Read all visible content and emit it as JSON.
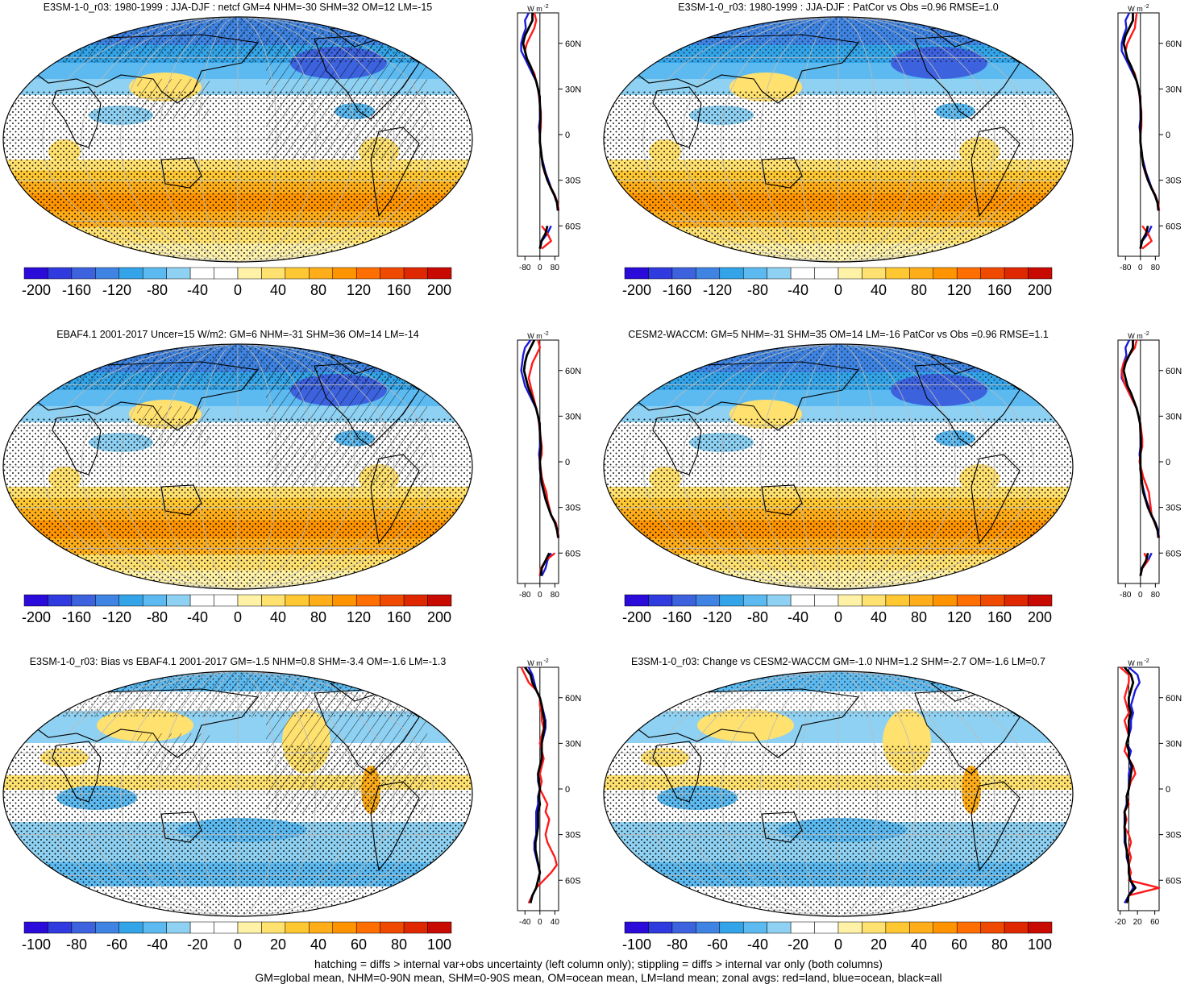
{
  "colorbar_colors": [
    "#2a0bd9",
    "#2f3bde",
    "#3d62de",
    "#3f84e2",
    "#33a4e8",
    "#5cbaf0",
    "#8fd1f2",
    "#ffffff",
    "#ffffff",
    "#fff2a6",
    "#ffe170",
    "#ffc833",
    "#ffae1a",
    "#ff9400",
    "#ff6e00",
    "#f04a00",
    "#e02800",
    "#c80a00"
  ],
  "zonal_line_colors": {
    "land": "#ff1a1a",
    "ocean": "#1a1adc",
    "all": "#000000"
  },
  "map_palette": {
    "land_outline": "#000000",
    "grid": "#bbbbbb"
  },
  "zonal_lat_labels": [
    "60N",
    "30N",
    "0",
    "30S",
    "60S"
  ],
  "panels": [
    {
      "id": "p1",
      "title": "E3SM-1-0_r03: 1980-1999 : JJA-DJF : netcf GM=4 NHM=-30 SHM=32 OM=12 LM=-15",
      "cbar_ticks": [
        "-200",
        "-160",
        "-120",
        "-80",
        "-40",
        "0",
        "40",
        "80",
        "120",
        "160",
        "200"
      ],
      "zonal_unit": "W m",
      "zonal_unit_exp": "-2",
      "zonal_x_ticks": [
        "-80",
        "0",
        "80"
      ],
      "zonal_xrange": [
        -120,
        100
      ],
      "hatch": true,
      "zonal": {
        "lat": [
          80,
          75,
          70,
          65,
          60,
          55,
          50,
          45,
          40,
          35,
          30,
          25,
          20,
          15,
          10,
          5,
          0,
          -5,
          -10,
          -15,
          -20,
          -25,
          -30,
          -35,
          -40,
          -45,
          -50,
          -55,
          -60,
          -65,
          -70,
          -75
        ],
        "land": [
          -30,
          -20,
          -30,
          -50,
          -70,
          -80,
          -70,
          -50,
          -30,
          -20,
          -10,
          -5,
          0,
          5,
          5,
          5,
          0,
          0,
          5,
          10,
          15,
          25,
          40,
          60,
          80,
          95,
          100,
          null,
          10,
          40,
          60,
          10
        ],
        "ocean": [
          -60,
          -80,
          -75,
          -90,
          -100,
          -100,
          -80,
          -60,
          -40,
          -20,
          -10,
          0,
          0,
          0,
          0,
          -5,
          0,
          0,
          5,
          10,
          20,
          30,
          45,
          60,
          80,
          95,
          100,
          null,
          60,
          40,
          10,
          0
        ],
        "all": [
          -40,
          -40,
          -60,
          -80,
          -90,
          -80,
          -70,
          -50,
          -35,
          -20,
          -10,
          -2,
          0,
          2,
          3,
          0,
          0,
          0,
          5,
          10,
          15,
          28,
          40,
          58,
          78,
          92,
          96,
          null,
          40,
          30,
          8,
          0
        ]
      }
    },
    {
      "id": "p2",
      "title": "E3SM-1-0_r03: 1980-1999 : JJA-DJF : PatCor vs Obs =0.96 RMSE=1.0",
      "cbar_ticks": [
        "-200",
        "-160",
        "-120",
        "-80",
        "-40",
        "0",
        "40",
        "80",
        "120",
        "160",
        "200"
      ],
      "zonal_unit": "W m",
      "zonal_unit_exp": "-2",
      "zonal_x_ticks": [
        "-80",
        "0",
        "80"
      ],
      "zonal_xrange": [
        -120,
        100
      ],
      "hatch": false,
      "zonal": {
        "lat": [
          80,
          75,
          70,
          65,
          60,
          55,
          50,
          45,
          40,
          35,
          30,
          25,
          20,
          15,
          10,
          5,
          0,
          -5,
          -10,
          -15,
          -20,
          -25,
          -30,
          -35,
          -40,
          -45,
          -50,
          -55,
          -60,
          -65,
          -70,
          -75
        ],
        "land": [
          -20,
          -25,
          -30,
          -50,
          -70,
          -80,
          -70,
          -50,
          -30,
          -20,
          -10,
          -5,
          0,
          5,
          5,
          5,
          0,
          0,
          5,
          10,
          15,
          25,
          40,
          60,
          80,
          95,
          100,
          null,
          10,
          40,
          60,
          10
        ],
        "ocean": [
          -60,
          -80,
          -75,
          -90,
          -100,
          -100,
          -80,
          -60,
          -40,
          -20,
          -10,
          0,
          0,
          0,
          0,
          -5,
          0,
          0,
          5,
          10,
          20,
          30,
          45,
          60,
          80,
          95,
          100,
          null,
          60,
          40,
          10,
          0
        ],
        "all": [
          -40,
          -40,
          -60,
          -80,
          -90,
          -80,
          -70,
          -50,
          -35,
          -20,
          -10,
          -2,
          0,
          2,
          3,
          0,
          0,
          0,
          5,
          10,
          15,
          28,
          40,
          58,
          78,
          92,
          96,
          null,
          40,
          30,
          8,
          0
        ]
      }
    },
    {
      "id": "p3",
      "title": "EBAF4.1 2001-2017 Uncer=15 W/m2: GM=6 NHM=-31 SHM=36 OM=14 LM=-14",
      "cbar_ticks": [
        "-200",
        "-160",
        "-120",
        "-80",
        "-40",
        "0",
        "40",
        "80",
        "120",
        "160",
        "200"
      ],
      "zonal_unit": "W m",
      "zonal_unit_exp": "-2",
      "zonal_x_ticks": [
        "-80",
        "0",
        "80"
      ],
      "zonal_xrange": [
        -120,
        100
      ],
      "hatch": true,
      "zonal": {
        "lat": [
          80,
          75,
          70,
          65,
          60,
          55,
          50,
          45,
          40,
          35,
          30,
          25,
          20,
          15,
          10,
          5,
          0,
          -5,
          -10,
          -15,
          -20,
          -25,
          -30,
          -35,
          -40,
          -45,
          -50,
          -55,
          -60,
          -65,
          -70,
          -75
        ],
        "land": [
          -10,
          0,
          -20,
          -40,
          -50,
          -60,
          -50,
          -40,
          -30,
          -20,
          -10,
          -5,
          0,
          5,
          10,
          10,
          0,
          5,
          10,
          20,
          35,
          40,
          50,
          60,
          85,
          95,
          100,
          null,
          80,
          30,
          5,
          0
        ],
        "ocean": [
          -50,
          -80,
          -90,
          -95,
          -100,
          -90,
          -80,
          -60,
          -40,
          -20,
          -10,
          0,
          0,
          0,
          0,
          -5,
          0,
          0,
          5,
          10,
          20,
          30,
          45,
          60,
          80,
          95,
          100,
          null,
          60,
          40,
          30,
          10
        ],
        "all": [
          -30,
          -50,
          -70,
          -80,
          -85,
          -75,
          -65,
          -50,
          -35,
          -20,
          -10,
          -2,
          0,
          2,
          5,
          2,
          0,
          2,
          6,
          12,
          22,
          32,
          45,
          60,
          80,
          92,
          98,
          null,
          50,
          30,
          10,
          5
        ]
      }
    },
    {
      "id": "p4",
      "title": "CESM2-WACCM: GM=5 NHM=-31 SHM=35 OM=14 LM=-16 PatCor vs Obs =0.96 RMSE=1.1",
      "cbar_ticks": [
        "-200",
        "-160",
        "-120",
        "-80",
        "-40",
        "0",
        "40",
        "80",
        "120",
        "160",
        "200"
      ],
      "zonal_unit": "W m",
      "zonal_unit_exp": "-2",
      "zonal_x_ticks": [
        "-80",
        "0",
        "80"
      ],
      "zonal_xrange": [
        -120,
        100
      ],
      "hatch": false,
      "zonal": {
        "lat": [
          80,
          75,
          70,
          65,
          60,
          55,
          50,
          45,
          40,
          35,
          30,
          25,
          20,
          15,
          10,
          5,
          0,
          -5,
          -10,
          -15,
          -20,
          -25,
          -30,
          -35,
          -40,
          -45,
          -50,
          -55,
          -60,
          -65,
          -70,
          -75
        ],
        "land": [
          -20,
          -30,
          -60,
          -90,
          -100,
          -95,
          -80,
          -60,
          -40,
          -20,
          -10,
          0,
          5,
          10,
          10,
          0,
          -5,
          5,
          15,
          30,
          45,
          50,
          55,
          60,
          75,
          90,
          100,
          null,
          20,
          40,
          10,
          0
        ],
        "ocean": [
          -60,
          -80,
          -75,
          -90,
          -100,
          -100,
          -80,
          -60,
          -40,
          -20,
          -10,
          0,
          0,
          0,
          0,
          -5,
          0,
          0,
          5,
          10,
          20,
          30,
          45,
          60,
          80,
          95,
          100,
          null,
          60,
          40,
          10,
          0
        ],
        "all": [
          -40,
          -40,
          -60,
          -80,
          -90,
          -80,
          -70,
          -50,
          -35,
          -20,
          -10,
          -2,
          0,
          2,
          3,
          0,
          0,
          0,
          5,
          10,
          15,
          28,
          40,
          58,
          78,
          92,
          96,
          null,
          40,
          30,
          8,
          0
        ]
      }
    },
    {
      "id": "p5",
      "title": "E3SM-1-0_r03: Bias vs EBAF4.1 2001-2017 GM=-1.5 NHM=0.8 SHM=-3.4 OM=-1.6 LM=-1.3",
      "cbar_ticks": [
        "-100",
        "-80",
        "-60",
        "-40",
        "-20",
        "0",
        "20",
        "40",
        "60",
        "80",
        "100"
      ],
      "zonal_unit": "W m",
      "zonal_unit_exp": "-2",
      "zonal_x_ticks": [
        "-40",
        "0",
        "40"
      ],
      "zonal_xrange": [
        -60,
        50
      ],
      "hatch": true,
      "zonal": {
        "lat": [
          80,
          75,
          70,
          65,
          60,
          55,
          50,
          45,
          40,
          35,
          30,
          25,
          20,
          15,
          10,
          5,
          0,
          -5,
          -10,
          -15,
          -20,
          -25,
          -30,
          -35,
          -40,
          -45,
          -50,
          -55,
          -60,
          -65,
          -70,
          -75
        ],
        "land": [
          -50,
          -40,
          -30,
          -10,
          0,
          0,
          5,
          5,
          10,
          5,
          0,
          5,
          10,
          5,
          0,
          5,
          0,
          10,
          20,
          15,
          25,
          20,
          15,
          20,
          30,
          40,
          45,
          30,
          10,
          -10,
          -20,
          -30
        ],
        "ocean": [
          -30,
          -20,
          -15,
          -10,
          0,
          5,
          10,
          15,
          15,
          10,
          5,
          5,
          5,
          0,
          -5,
          -5,
          0,
          -5,
          -5,
          -10,
          -10,
          -10,
          -10,
          -15,
          -15,
          -10,
          -5,
          0,
          -5,
          -10,
          -20,
          -30
        ],
        "all": [
          -40,
          -25,
          -20,
          -10,
          0,
          5,
          8,
          12,
          12,
          8,
          5,
          5,
          5,
          0,
          -5,
          -3,
          0,
          -3,
          0,
          -5,
          -5,
          -5,
          -8,
          -12,
          -12,
          -8,
          -4,
          0,
          -5,
          -10,
          -20,
          -25
        ]
      }
    },
    {
      "id": "p6",
      "title": "E3SM-1-0_r03: Change vs CESM2-WACCM GM=-1.0 NHM=1.2 SHM=-2.7 OM=-1.6 LM=0.7",
      "cbar_ticks": [
        "-100",
        "-80",
        "-60",
        "-40",
        "-20",
        "0",
        "20",
        "40",
        "60",
        "80",
        "100"
      ],
      "zonal_unit": "W m",
      "zonal_unit_exp": "-2",
      "zonal_x_ticks": [
        "-20",
        "20",
        "60"
      ],
      "zonal_xrange": [
        -25,
        70
      ],
      "hatch": false,
      "zonal": {
        "lat": [
          80,
          75,
          70,
          65,
          60,
          55,
          50,
          45,
          40,
          35,
          30,
          25,
          20,
          15,
          10,
          5,
          0,
          -5,
          -10,
          -15,
          -20,
          -25,
          -30,
          -35,
          -40,
          -45,
          -50,
          -55,
          -60,
          -65,
          -70,
          -75
        ],
        "land": [
          -20,
          0,
          0,
          -5,
          -10,
          -5,
          0,
          -10,
          -5,
          0,
          -5,
          -10,
          0,
          10,
          15,
          5,
          0,
          -5,
          0,
          -10,
          -5,
          -10,
          0,
          5,
          0,
          5,
          0,
          5,
          0,
          70,
          0,
          -5
        ],
        "ocean": [
          0,
          20,
          25,
          15,
          10,
          5,
          10,
          5,
          5,
          0,
          -5,
          5,
          0,
          5,
          0,
          0,
          0,
          -5,
          -5,
          -10,
          -10,
          -10,
          -10,
          -10,
          -5,
          -5,
          0,
          0,
          5,
          10,
          0,
          -10
        ],
        "all": [
          -10,
          5,
          10,
          5,
          0,
          0,
          5,
          0,
          0,
          0,
          -5,
          0,
          0,
          8,
          5,
          2,
          0,
          -5,
          -3,
          -10,
          -8,
          -10,
          -8,
          -8,
          -5,
          -3,
          0,
          0,
          3,
          15,
          0,
          -5
        ]
      }
    }
  ],
  "footer": {
    "line1": "hatching = diffs > internal var+obs uncertainty (left column only); stippling = diffs > internal var only (both columns)",
    "line2": "GM=global mean, NHM=0-90N mean, SHM=0-90S mean, OM=ocean mean, LM=land mean; zonal avgs: red=land, blue=ocean, black=all"
  }
}
